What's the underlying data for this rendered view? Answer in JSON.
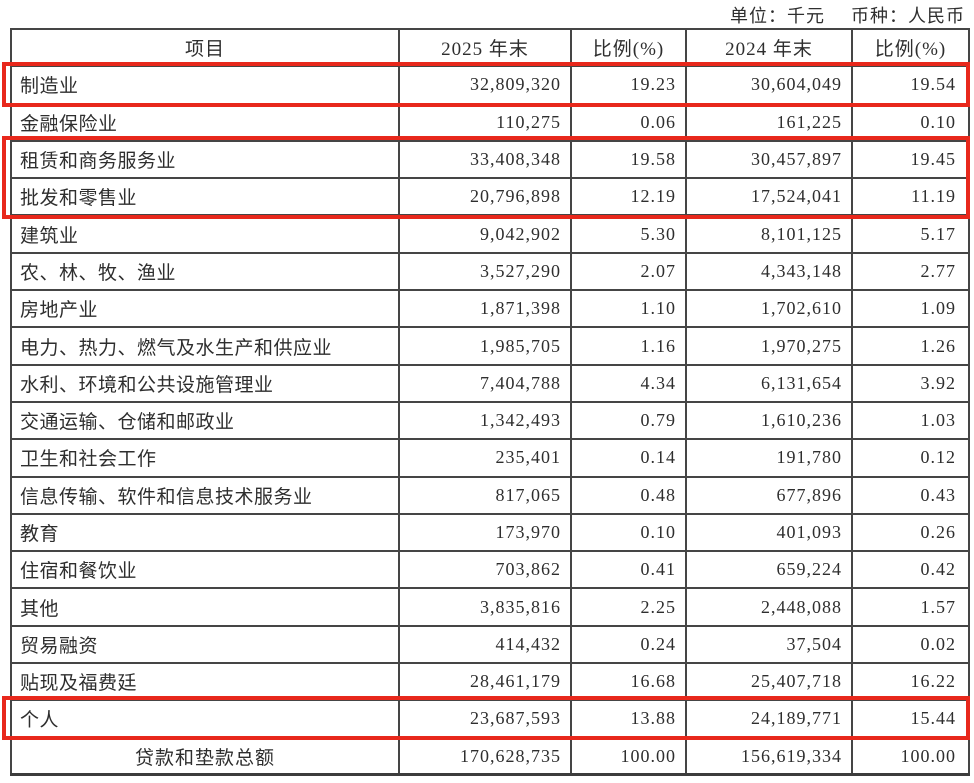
{
  "meta": {
    "unit_label": "单位：千元",
    "currency_label": "币种：人民币"
  },
  "colors": {
    "highlight_red": "#e8281c",
    "border_dark": "#454545",
    "text": "#2e2e2e"
  },
  "table": {
    "headers": [
      "项目",
      "2025 年末",
      "比例(%)",
      "2024 年末",
      "比例(%)"
    ],
    "rows": [
      {
        "name": "制造业",
        "v2025": "32,809,320",
        "p2025": "19.23",
        "v2024": "30,604,049",
        "p2024": "19.54",
        "highlighted": true,
        "total": false
      },
      {
        "name": "金融保险业",
        "v2025": "110,275",
        "p2025": "0.06",
        "v2024": "161,225",
        "p2024": "0.10",
        "highlighted": false,
        "total": false
      },
      {
        "name": "租赁和商务服务业",
        "v2025": "33,408,348",
        "p2025": "19.58",
        "v2024": "30,457,897",
        "p2024": "19.45",
        "highlighted": true,
        "total": false
      },
      {
        "name": "批发和零售业",
        "v2025": "20,796,898",
        "p2025": "12.19",
        "v2024": "17,524,041",
        "p2024": "11.19",
        "highlighted": true,
        "total": false
      },
      {
        "name": "建筑业",
        "v2025": "9,042,902",
        "p2025": "5.30",
        "v2024": "8,101,125",
        "p2024": "5.17",
        "highlighted": false,
        "total": false
      },
      {
        "name": "农、林、牧、渔业",
        "v2025": "3,527,290",
        "p2025": "2.07",
        "v2024": "4,343,148",
        "p2024": "2.77",
        "highlighted": false,
        "total": false
      },
      {
        "name": "房地产业",
        "v2025": "1,871,398",
        "p2025": "1.10",
        "v2024": "1,702,610",
        "p2024": "1.09",
        "highlighted": false,
        "total": false
      },
      {
        "name": "电力、热力、燃气及水生产和供应业",
        "v2025": "1,985,705",
        "p2025": "1.16",
        "v2024": "1,970,275",
        "p2024": "1.26",
        "highlighted": false,
        "total": false
      },
      {
        "name": "水利、环境和公共设施管理业",
        "v2025": "7,404,788",
        "p2025": "4.34",
        "v2024": "6,131,654",
        "p2024": "3.92",
        "highlighted": false,
        "total": false
      },
      {
        "name": "交通运输、仓储和邮政业",
        "v2025": "1,342,493",
        "p2025": "0.79",
        "v2024": "1,610,236",
        "p2024": "1.03",
        "highlighted": false,
        "total": false
      },
      {
        "name": "卫生和社会工作",
        "v2025": "235,401",
        "p2025": "0.14",
        "v2024": "191,780",
        "p2024": "0.12",
        "highlighted": false,
        "total": false
      },
      {
        "name": "信息传输、软件和信息技术服务业",
        "v2025": "817,065",
        "p2025": "0.48",
        "v2024": "677,896",
        "p2024": "0.43",
        "highlighted": false,
        "total": false
      },
      {
        "name": "教育",
        "v2025": "173,970",
        "p2025": "0.10",
        "v2024": "401,093",
        "p2024": "0.26",
        "highlighted": false,
        "total": false
      },
      {
        "name": "住宿和餐饮业",
        "v2025": "703,862",
        "p2025": "0.41",
        "v2024": "659,224",
        "p2024": "0.42",
        "highlighted": false,
        "total": false
      },
      {
        "name": "其他",
        "v2025": "3,835,816",
        "p2025": "2.25",
        "v2024": "2,448,088",
        "p2024": "1.57",
        "highlighted": false,
        "total": false
      },
      {
        "name": "贸易融资",
        "v2025": "414,432",
        "p2025": "0.24",
        "v2024": "37,504",
        "p2024": "0.02",
        "highlighted": false,
        "total": false
      },
      {
        "name": "贴现及福费廷",
        "v2025": "28,461,179",
        "p2025": "16.68",
        "v2024": "25,407,718",
        "p2024": "16.22",
        "highlighted": false,
        "total": false
      },
      {
        "name": "个人",
        "v2025": "23,687,593",
        "p2025": "13.88",
        "v2024": "24,189,771",
        "p2024": "15.44",
        "highlighted": true,
        "total": false
      },
      {
        "name": "贷款和垫款总额",
        "v2025": "170,628,735",
        "p2025": "100.00",
        "v2024": "156,619,334",
        "p2024": "100.00",
        "highlighted": false,
        "total": true
      }
    ],
    "highlights": [
      {
        "target": "制造业",
        "rows": [
          0
        ]
      },
      {
        "target": "租赁和商务服务业 / 批发和零售业",
        "rows": [
          2,
          3
        ]
      },
      {
        "target": "个人",
        "rows": [
          17
        ]
      }
    ]
  }
}
